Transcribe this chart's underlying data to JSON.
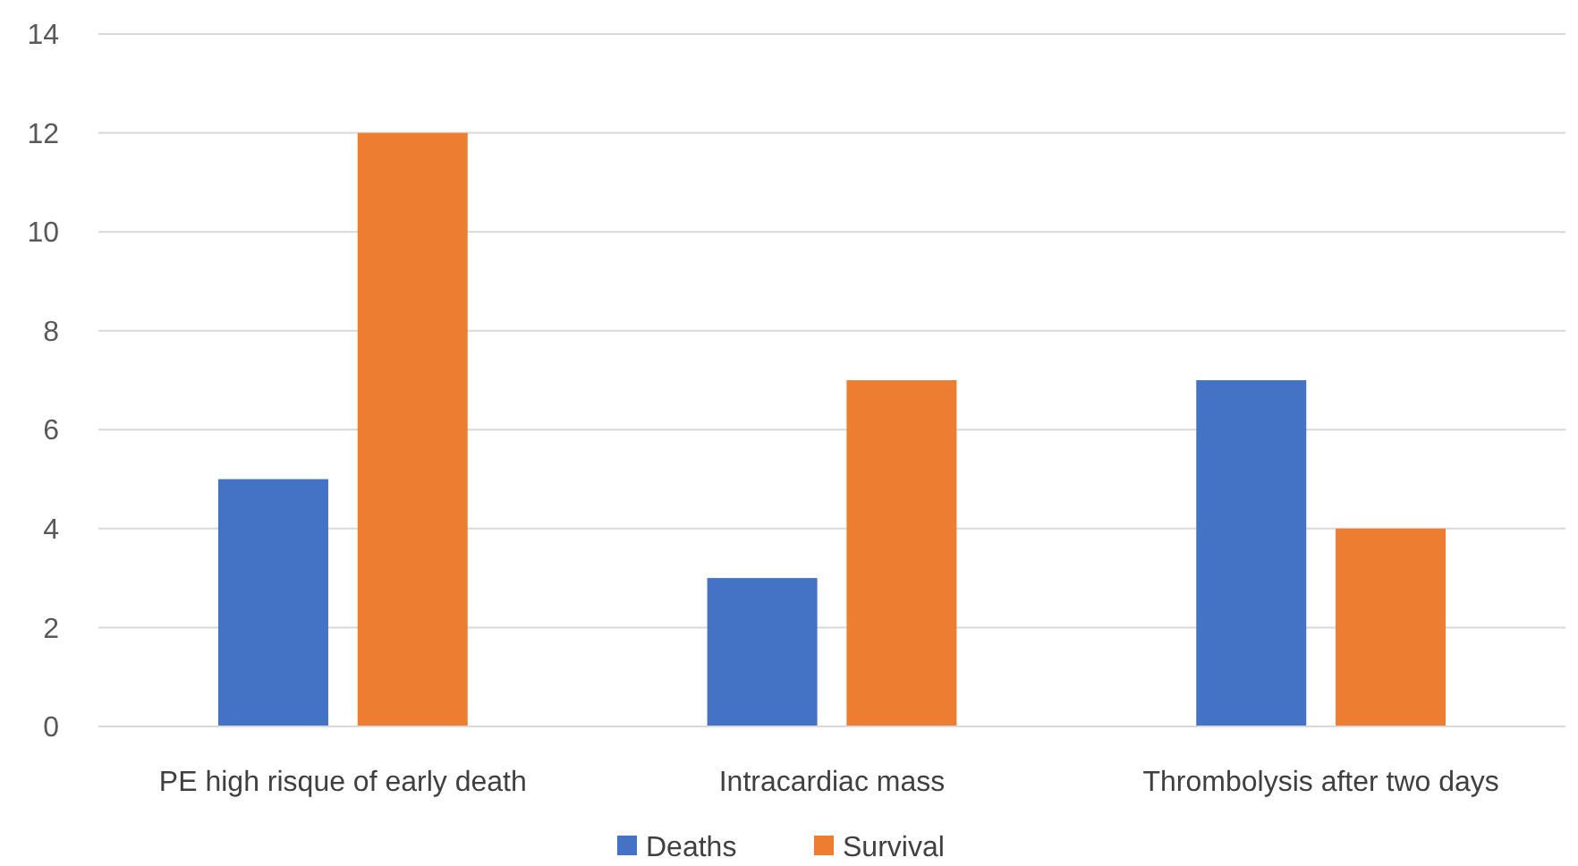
{
  "chart_data": {
    "type": "bar",
    "categories": [
      "PE high risque of early death",
      "Intracardiac mass",
      "Thrombolysis after two days"
    ],
    "series": [
      {
        "name": "Deaths",
        "color": "#4472c4",
        "values": [
          5,
          3,
          7
        ]
      },
      {
        "name": "Survival",
        "color": "#ed7d31",
        "values": [
          12,
          7,
          4
        ]
      }
    ],
    "ylim": [
      0,
      14
    ],
    "yticks": [
      0,
      2,
      4,
      6,
      8,
      10,
      12,
      14
    ],
    "grid": "y",
    "legend": "bottom"
  }
}
